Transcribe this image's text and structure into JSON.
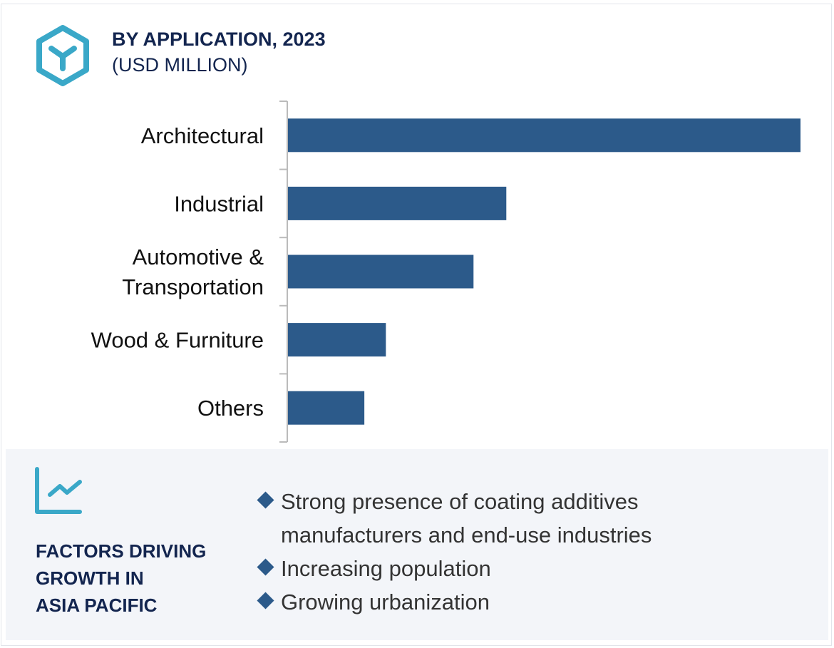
{
  "header": {
    "title": "BY APPLICATION, 2023",
    "subtitle": "(USD MILLION)",
    "icon": "hexagon-y-icon"
  },
  "chart_data": {
    "type": "bar",
    "orientation": "horizontal",
    "title": "BY APPLICATION, 2023",
    "ylabel": "(USD MILLION)",
    "categories": [
      "Architectural",
      "Industrial",
      "Automotive & Transportation",
      "Wood & Furniture",
      "Others"
    ],
    "category_lines": [
      [
        "Architectural"
      ],
      [
        "Industrial"
      ],
      [
        "Automotive &",
        "Transportation"
      ],
      [
        "Wood & Furniture"
      ],
      [
        "Others"
      ]
    ],
    "values": [
      100,
      42.6,
      36.2,
      19.1,
      14.9
    ],
    "value_note": "relative bar lengths, no axis values shown",
    "xlim": [
      0,
      100
    ],
    "bar_color": "#2c5a8a",
    "grid": false
  },
  "panel": {
    "icon": "line-chart-icon",
    "title": "FACTORS DRIVING GROWTH IN ASIA PACIFIC",
    "title_lines": [
      "FACTORS DRIVING",
      "GROWTH IN",
      "ASIA PACIFIC"
    ],
    "bullets": [
      "Strong presence of coating additives manufacturers and end-use industries",
      "Increasing population",
      "Growing urbanization"
    ]
  },
  "colors": {
    "accent": "#3aa8c8",
    "navy": "#13254f",
    "bar": "#2c5a8a",
    "panel_bg": "#f3f5f9"
  }
}
